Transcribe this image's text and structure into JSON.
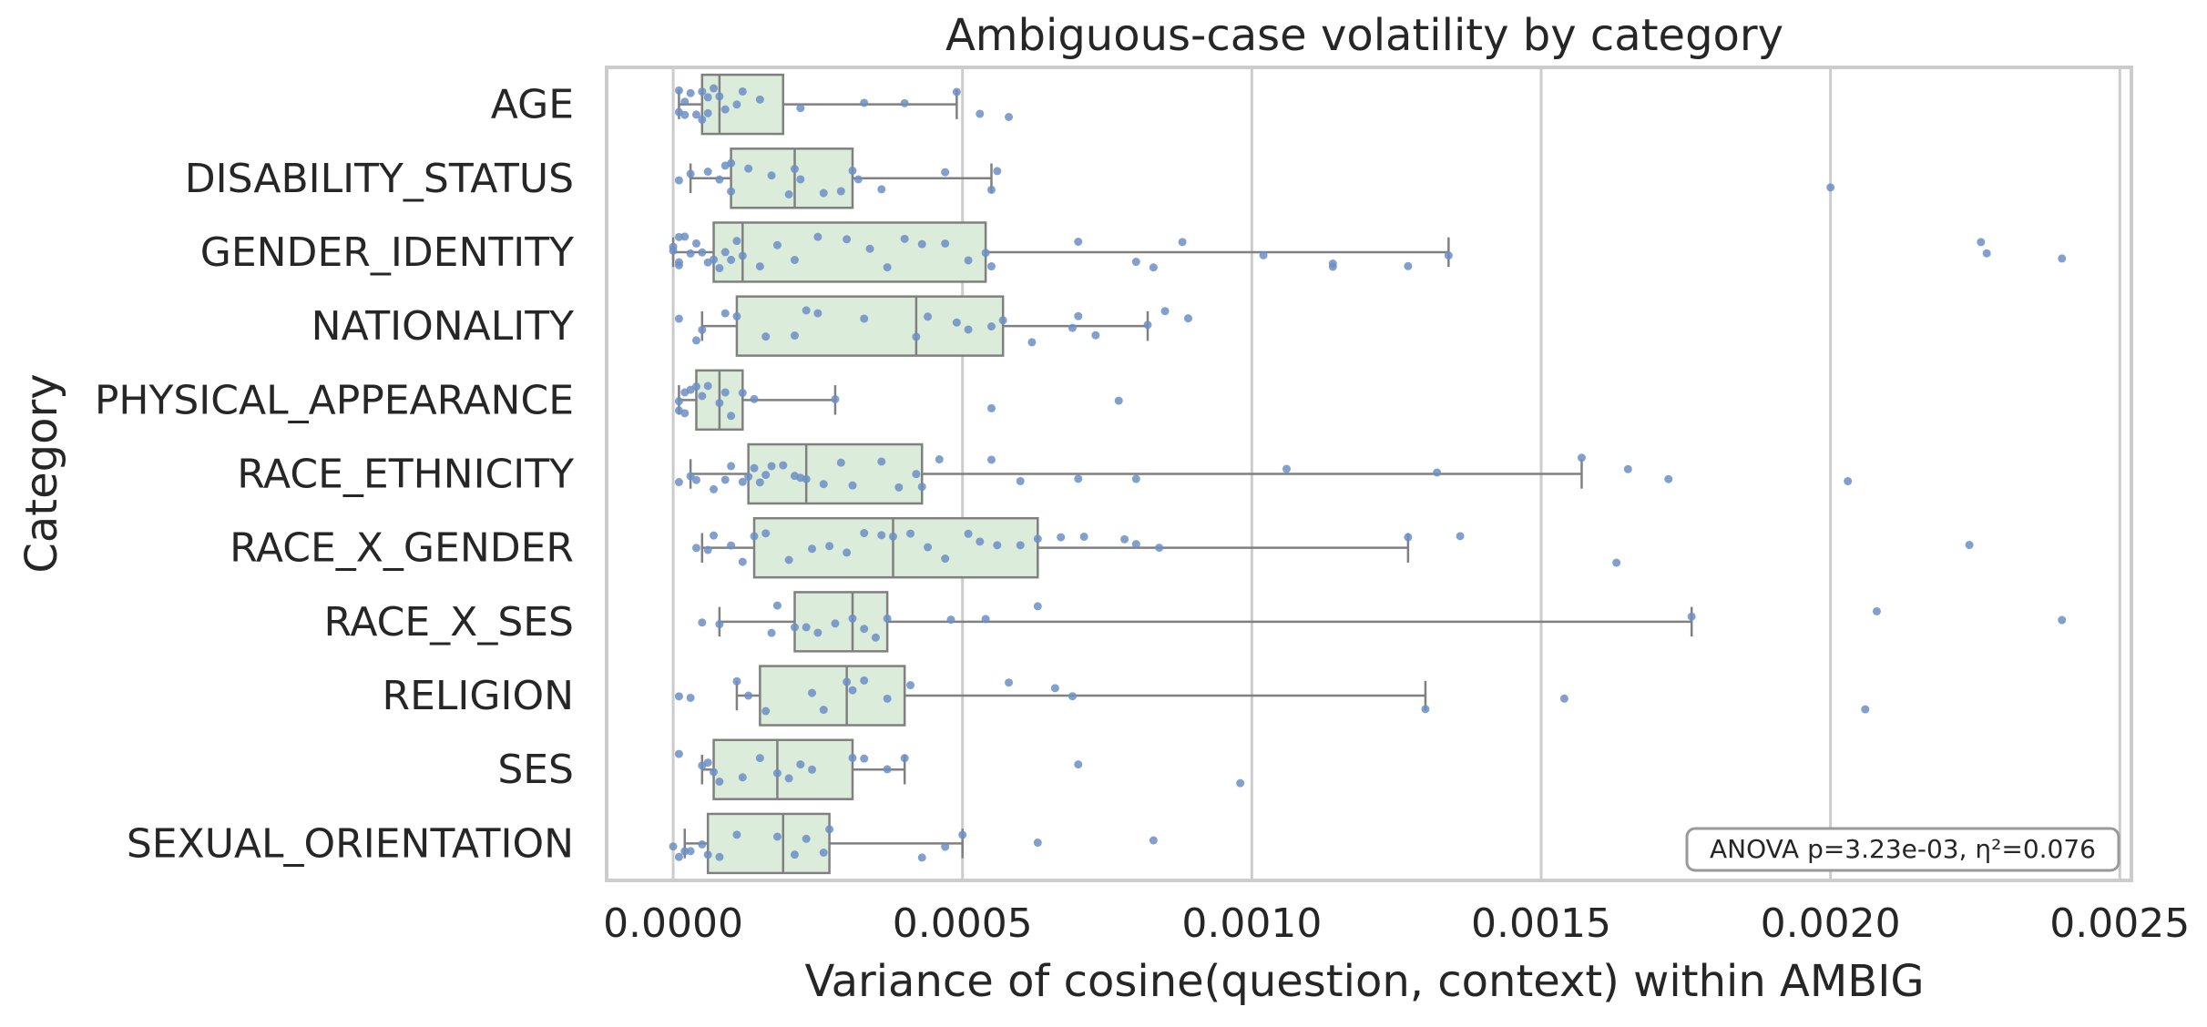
{
  "chart_data": {
    "type": "box",
    "title": "Ambiguous-case volatility by category",
    "xlabel": "Variance of cosine(question, context) within AMBIG",
    "ylabel": "Category",
    "xlim": [
      -0.000115,
      0.00252
    ],
    "xticks": [
      0.0,
      0.0005,
      0.001,
      0.0015,
      0.002,
      0.0025
    ],
    "xtick_labels": [
      "0.0000",
      "0.0005",
      "0.0010",
      "0.0015",
      "0.0020",
      "0.0025"
    ],
    "grid": "vertical",
    "annotation": "ANOVA p=3.23e-03, η²=0.076",
    "annotation_position": "bottom-right",
    "colors": {
      "box_fill": "#dcecdb",
      "box_edge": "#808080",
      "points": "#6b8fc6",
      "grid": "#cccccc",
      "frame": "#cccccc",
      "text": "#262626"
    },
    "categories": [
      "AGE",
      "DISABILITY_STATUS",
      "GENDER_IDENTITY",
      "NATIONALITY",
      "PHYSICAL_APPEARANCE",
      "RACE_ETHNICITY",
      "RACE_X_GENDER",
      "RACE_X_SES",
      "RELIGION",
      "SES",
      "SEXUAL_ORIENTATION"
    ],
    "boxes": [
      {
        "category": "AGE",
        "whislo": 1e-05,
        "q1": 5e-05,
        "median": 8e-05,
        "q3": 0.00019,
        "whishi": 0.00049,
        "points": [
          1e-05,
          1e-05,
          2e-05,
          2e-05,
          3e-05,
          4e-05,
          5e-05,
          5e-05,
          6e-05,
          6e-05,
          7e-05,
          8e-05,
          9e-05,
          0.00011,
          0.00012,
          0.00015,
          0.00022,
          0.00033,
          0.0004,
          0.00049,
          0.00053,
          0.00058
        ]
      },
      {
        "category": "DISABILITY_STATUS",
        "whislo": 3e-05,
        "q1": 0.0001,
        "median": 0.00021,
        "q3": 0.00031,
        "whishi": 0.00055,
        "points": [
          1e-05,
          3e-05,
          6e-05,
          8e-05,
          9e-05,
          0.0001,
          0.0001,
          0.00013,
          0.00017,
          0.0002,
          0.00021,
          0.00022,
          0.00026,
          0.00029,
          0.00031,
          0.00032,
          0.00036,
          0.00047,
          0.00055,
          0.00056,
          0.002
        ]
      },
      {
        "category": "GENDER_IDENTITY",
        "whislo": 0.0,
        "q1": 7e-05,
        "median": 0.00012,
        "q3": 0.00054,
        "whishi": 0.00134,
        "points": [
          0.0,
          0.0,
          1e-05,
          1e-05,
          1e-05,
          2e-05,
          3e-05,
          4e-05,
          5e-05,
          6e-05,
          7e-05,
          8e-05,
          9e-05,
          0.0001,
          0.00011,
          0.00012,
          0.00015,
          0.00018,
          0.00021,
          0.00025,
          0.0003,
          0.00034,
          0.00037,
          0.0004,
          0.00043,
          0.00047,
          0.00051,
          0.00054,
          0.00055,
          0.0007,
          0.0008,
          0.00083,
          0.00088,
          0.00102,
          0.00114,
          0.00114,
          0.00127,
          0.00134,
          0.00226,
          0.00227,
          0.0024
        ]
      },
      {
        "category": "NATIONALITY",
        "whislo": 5e-05,
        "q1": 0.00011,
        "median": 0.00042,
        "q3": 0.00057,
        "whishi": 0.00082,
        "points": [
          1e-05,
          4e-05,
          5e-05,
          9e-05,
          0.00011,
          0.00016,
          0.00021,
          0.00023,
          0.00025,
          0.00033,
          0.00042,
          0.00044,
          0.00049,
          0.00051,
          0.00055,
          0.00057,
          0.00062,
          0.00069,
          0.0007,
          0.00073,
          0.00082,
          0.00085,
          0.00089
        ]
      },
      {
        "category": "PHYSICAL_APPEARANCE",
        "whislo": 1e-05,
        "q1": 4e-05,
        "median": 8e-05,
        "q3": 0.00012,
        "whishi": 0.00028,
        "points": [
          1e-05,
          1e-05,
          2e-05,
          2e-05,
          3e-05,
          4e-05,
          5e-05,
          6e-05,
          8e-05,
          9e-05,
          0.0001,
          0.00012,
          0.00014,
          0.00028,
          0.00055,
          0.00077
        ]
      },
      {
        "category": "RACE_ETHNICITY",
        "whislo": 3e-05,
        "q1": 0.00013,
        "median": 0.00023,
        "q3": 0.00043,
        "whishi": 0.00157,
        "points": [
          1e-05,
          3e-05,
          4e-05,
          7e-05,
          9e-05,
          0.0001,
          0.00012,
          0.00013,
          0.00014,
          0.00015,
          0.00016,
          0.00017,
          0.00019,
          0.00021,
          0.00022,
          0.00023,
          0.00026,
          0.00029,
          0.00031,
          0.00036,
          0.00039,
          0.00042,
          0.00043,
          0.00046,
          0.00055,
          0.0006,
          0.0007,
          0.0008,
          0.00106,
          0.00132,
          0.00157,
          0.00165,
          0.00172,
          0.00203
        ]
      },
      {
        "category": "RACE_X_GENDER",
        "whislo": 5e-05,
        "q1": 0.00014,
        "median": 0.00038,
        "q3": 0.00063,
        "whishi": 0.00127,
        "points": [
          4e-05,
          6e-05,
          7e-05,
          0.0001,
          0.00012,
          0.00014,
          0.00016,
          0.0002,
          0.00024,
          0.00027,
          0.0003,
          0.00033,
          0.00036,
          0.00038,
          0.00041,
          0.00044,
          0.00047,
          0.00051,
          0.00053,
          0.00056,
          0.0006,
          0.00063,
          0.00067,
          0.00071,
          0.00078,
          0.0008,
          0.00084,
          0.00127,
          0.00136,
          0.00163,
          0.00224
        ]
      },
      {
        "category": "RACE_X_SES",
        "whislo": 8e-05,
        "q1": 0.00021,
        "median": 0.00031,
        "q3": 0.00037,
        "whishi": 0.00176,
        "points": [
          5e-05,
          8e-05,
          0.00017,
          0.00018,
          0.00021,
          0.00023,
          0.00025,
          0.00028,
          0.00031,
          0.00033,
          0.00035,
          0.00037,
          0.00048,
          0.00054,
          0.00063,
          0.00176,
          0.00208,
          0.0024
        ]
      },
      {
        "category": "RELIGION",
        "whislo": 0.00011,
        "q1": 0.00015,
        "median": 0.0003,
        "q3": 0.0004,
        "whishi": 0.0013,
        "points": [
          1e-05,
          3e-05,
          0.00011,
          0.00013,
          0.00016,
          0.00024,
          0.00026,
          0.0003,
          0.00031,
          0.00033,
          0.00037,
          0.00041,
          0.00058,
          0.00066,
          0.00069,
          0.0013,
          0.00154,
          0.00206
        ]
      },
      {
        "category": "SES",
        "whislo": 5e-05,
        "q1": 7e-05,
        "median": 0.00018,
        "q3": 0.00031,
        "whishi": 0.0004,
        "points": [
          1e-05,
          5e-05,
          6e-05,
          7e-05,
          8e-05,
          0.00012,
          0.00015,
          0.00018,
          0.0002,
          0.00022,
          0.00024,
          0.00031,
          0.00033,
          0.00037,
          0.0004,
          0.0007,
          0.00098
        ]
      },
      {
        "category": "SEXUAL_ORIENTATION",
        "whislo": 2e-05,
        "q1": 6e-05,
        "median": 0.00019,
        "q3": 0.00027,
        "whishi": 0.0005,
        "points": [
          0.0,
          1e-05,
          2e-05,
          3e-05,
          5e-05,
          6e-05,
          8e-05,
          0.00011,
          0.00018,
          0.00021,
          0.00023,
          0.00026,
          0.00027,
          0.00043,
          0.00047,
          0.0005,
          0.00063,
          0.00083
        ]
      }
    ]
  }
}
